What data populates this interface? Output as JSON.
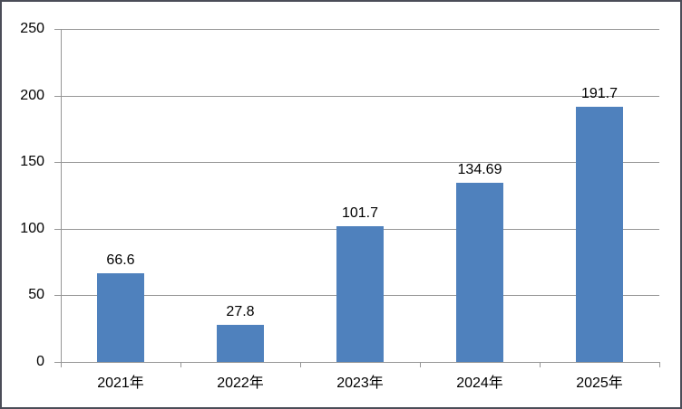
{
  "chart_data": {
    "type": "bar",
    "title": "",
    "xlabel": "",
    "ylabel": "",
    "categories": [
      "2021年",
      "2022年",
      "2023年",
      "2024年",
      "2025年"
    ],
    "values": [
      66.6,
      27.8,
      101.7,
      134.69,
      191.7
    ],
    "labels": [
      "66.6",
      "27.8",
      "101.7",
      "134.69",
      "191.7"
    ],
    "yticks": [
      0,
      50,
      100,
      150,
      200,
      250
    ],
    "ylim": [
      0,
      250
    ],
    "grid": true,
    "legend": false,
    "colors": {
      "bar": "#4F81BD",
      "grid": "#969696",
      "axis": "#969696",
      "text": "#000000",
      "border": "#4B4D58",
      "background": "#FFFFFF"
    }
  }
}
